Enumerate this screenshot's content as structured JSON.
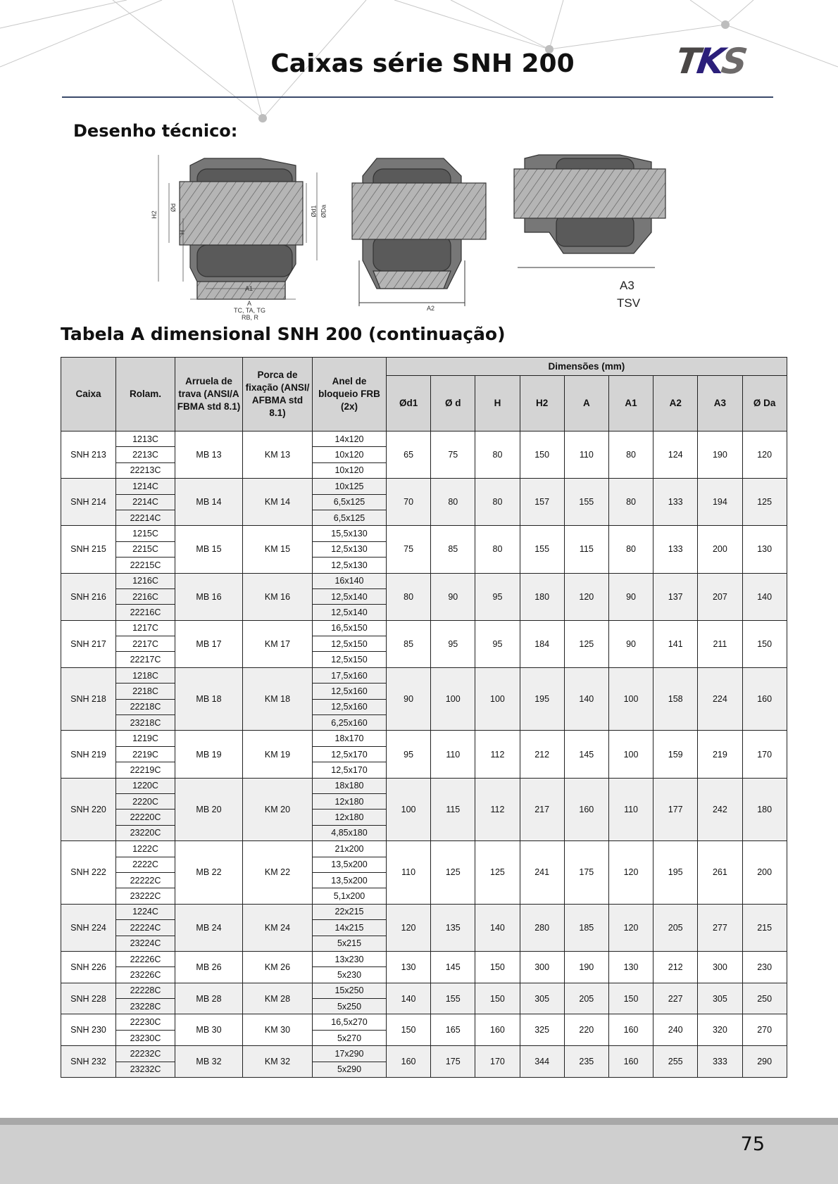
{
  "header": {
    "title": "Caixas série SNH 200",
    "logo": {
      "t": "T",
      "k": "K",
      "s": "S"
    },
    "colors": {
      "t": "#4a4746",
      "k": "#2b1f7a",
      "s": "#6d6a6a"
    }
  },
  "sections": {
    "drawing_title": "Desenho técnico:",
    "table_title": "Tabela A dimensional SNH 200 (continuação)"
  },
  "drawing_labels": {
    "h2": "H2",
    "od": "Ød",
    "h": "H",
    "od1": "Ød1",
    "oda": "ØDa",
    "a1": "A1",
    "a": "A",
    "types1": "TC, TA, TG",
    "types2": "RB, R",
    "a2": "A2",
    "a3": "A3",
    "tsv": "TSV"
  },
  "table": {
    "headers": {
      "caixa": "Caixa",
      "rolam": "Rolam.",
      "arruela": "Arruela de trava (ANSI/A FBMA std 8.1)",
      "porca": "Porca de fixação (ANSI/ AFBMA std 8.1)",
      "anel": "Anel de bloqueio FRB (2x)",
      "dimensoes": "Dimensões (mm)",
      "dims": [
        "Ød1",
        "Ø d",
        "H",
        "H2",
        "A",
        "A1",
        "A2",
        "A3",
        "Ø Da"
      ]
    },
    "groups": [
      {
        "caixa": "SNH 213",
        "rolam": [
          "1213C",
          "2213C",
          "22213C"
        ],
        "arruela": "MB 13",
        "porca": "KM 13",
        "anel": [
          "14x120",
          "10x120",
          "10x120"
        ],
        "dims": [
          "65",
          "75",
          "80",
          "150",
          "110",
          "80",
          "124",
          "190",
          "120"
        ]
      },
      {
        "caixa": "SNH 214",
        "rolam": [
          "1214C",
          "2214C",
          "22214C"
        ],
        "arruela": "MB 14",
        "porca": "KM 14",
        "anel": [
          "10x125",
          "6,5x125",
          "6,5x125"
        ],
        "dims": [
          "70",
          "80",
          "80",
          "157",
          "155",
          "80",
          "133",
          "194",
          "125"
        ]
      },
      {
        "caixa": "SNH 215",
        "rolam": [
          "1215C",
          "2215C",
          "22215C"
        ],
        "arruela": "MB 15",
        "porca": "KM 15",
        "anel": [
          "15,5x130",
          "12,5x130",
          "12,5x130"
        ],
        "dims": [
          "75",
          "85",
          "80",
          "155",
          "115",
          "80",
          "133",
          "200",
          "130"
        ]
      },
      {
        "caixa": "SNH 216",
        "rolam": [
          "1216C",
          "2216C",
          "22216C"
        ],
        "arruela": "MB 16",
        "porca": "KM 16",
        "anel": [
          "16x140",
          "12,5x140",
          "12,5x140"
        ],
        "dims": [
          "80",
          "90",
          "95",
          "180",
          "120",
          "90",
          "137",
          "207",
          "140"
        ]
      },
      {
        "caixa": "SNH 217",
        "rolam": [
          "1217C",
          "2217C",
          "22217C"
        ],
        "arruela": "MB 17",
        "porca": "KM 17",
        "anel": [
          "16,5x150",
          "12,5x150",
          "12,5x150"
        ],
        "dims": [
          "85",
          "95",
          "95",
          "184",
          "125",
          "90",
          "141",
          "211",
          "150"
        ]
      },
      {
        "caixa": "SNH 218",
        "rolam": [
          "1218C",
          "2218C",
          "22218C",
          "23218C"
        ],
        "arruela": "MB 18",
        "porca": "KM 18",
        "anel": [
          "17,5x160",
          "12,5x160",
          "12,5x160",
          "6,25x160"
        ],
        "dims": [
          "90",
          "100",
          "100",
          "195",
          "140",
          "100",
          "158",
          "224",
          "160"
        ]
      },
      {
        "caixa": "SNH 219",
        "rolam": [
          "1219C",
          "2219C",
          "22219C"
        ],
        "arruela": "MB 19",
        "porca": "KM 19",
        "anel": [
          "18x170",
          "12,5x170",
          "12,5x170"
        ],
        "dims": [
          "95",
          "110",
          "112",
          "212",
          "145",
          "100",
          "159",
          "219",
          "170"
        ]
      },
      {
        "caixa": "SNH 220",
        "rolam": [
          "1220C",
          "2220C",
          "22220C",
          "23220C"
        ],
        "arruela": "MB 20",
        "porca": "KM 20",
        "anel": [
          "18x180",
          "12x180",
          "12x180",
          "4,85x180"
        ],
        "dims": [
          "100",
          "115",
          "112",
          "217",
          "160",
          "110",
          "177",
          "242",
          "180"
        ]
      },
      {
        "caixa": "SNH 222",
        "rolam": [
          "1222C",
          "2222C",
          "22222C",
          "23222C"
        ],
        "arruela": "MB 22",
        "porca": "KM 22",
        "anel": [
          "21x200",
          "13,5x200",
          "13,5x200",
          "5,1x200"
        ],
        "dims": [
          "110",
          "125",
          "125",
          "241",
          "175",
          "120",
          "195",
          "261",
          "200"
        ]
      },
      {
        "caixa": "SNH 224",
        "rolam": [
          "1224C",
          "22224C",
          "23224C"
        ],
        "arruela": "MB 24",
        "porca": "KM 24",
        "anel": [
          "22x215",
          "14x215",
          "5x215"
        ],
        "dims": [
          "120",
          "135",
          "140",
          "280",
          "185",
          "120",
          "205",
          "277",
          "215"
        ]
      },
      {
        "caixa": "SNH 226",
        "rolam": [
          "22226C",
          "23226C"
        ],
        "arruela": "MB 26",
        "porca": "KM 26",
        "anel": [
          "13x230",
          "5x230"
        ],
        "dims": [
          "130",
          "145",
          "150",
          "300",
          "190",
          "130",
          "212",
          "300",
          "230"
        ]
      },
      {
        "caixa": "SNH 228",
        "rolam": [
          "22228C",
          "23228C"
        ],
        "arruela": "MB 28",
        "porca": "KM 28",
        "anel": [
          "15x250",
          "5x250"
        ],
        "dims": [
          "140",
          "155",
          "150",
          "305",
          "205",
          "150",
          "227",
          "305",
          "250"
        ]
      },
      {
        "caixa": "SNH 230",
        "rolam": [
          "22230C",
          "23230C"
        ],
        "arruela": "MB 30",
        "porca": "KM 30",
        "anel": [
          "16,5x270",
          "5x270"
        ],
        "dims": [
          "150",
          "165",
          "160",
          "325",
          "220",
          "160",
          "240",
          "320",
          "270"
        ]
      },
      {
        "caixa": "SNH 232",
        "rolam": [
          "22232C",
          "23232C"
        ],
        "arruela": "MB 32",
        "porca": "KM 32",
        "anel": [
          "17x290",
          "5x290"
        ],
        "dims": [
          "160",
          "175",
          "170",
          "344",
          "235",
          "160",
          "255",
          "333",
          "290"
        ]
      }
    ]
  },
  "footer": {
    "page_number": "75"
  }
}
